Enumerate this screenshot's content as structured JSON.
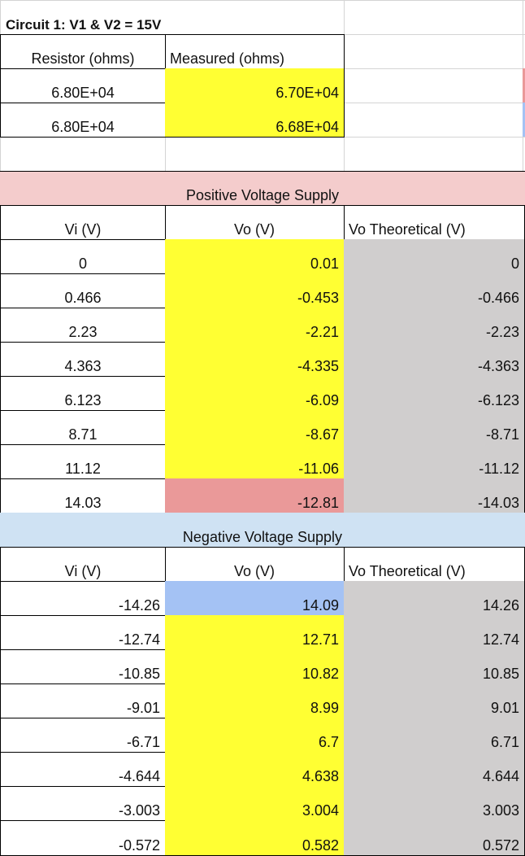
{
  "title": "Circuit 1: V1 & V2 = 15V",
  "colors": {
    "measured": "#ffff33",
    "theoretical": "#d0cece",
    "positive_band": "#f4cccc",
    "negative_band": "#cfe2f3",
    "flag_red": "#ea9999",
    "flag_blue": "#a4c2f4"
  },
  "resistors": {
    "headers": [
      "Resistor (ohms)",
      "Measured (ohms)"
    ],
    "rows": [
      {
        "nominal": "6.80E+04",
        "measured": "6.70E+04"
      },
      {
        "nominal": "6.80E+04",
        "measured": "6.68E+04"
      }
    ]
  },
  "positive": {
    "label": "Positive Voltage Supply",
    "headers": [
      "Vi (V)",
      "Vo (V)",
      "Vo Theoretical (V)"
    ],
    "rows": [
      {
        "vi": "0",
        "vo": "0.01",
        "vt": "0"
      },
      {
        "vi": "0.466",
        "vo": "-0.453",
        "vt": "-0.466"
      },
      {
        "vi": "2.23",
        "vo": "-2.21",
        "vt": "-2.23"
      },
      {
        "vi": "4.363",
        "vo": "-4.335",
        "vt": "-4.363"
      },
      {
        "vi": "6.123",
        "vo": "-6.09",
        "vt": "-6.123"
      },
      {
        "vi": "8.71",
        "vo": "-8.67",
        "vt": "-8.71"
      },
      {
        "vi": "11.12",
        "vo": "-11.06",
        "vt": "-11.12"
      },
      {
        "vi": "14.03",
        "vo": "-12.81",
        "vt": "-14.03"
      }
    ]
  },
  "negative": {
    "label": "Negative Voltage Supply",
    "headers": [
      "Vi (V)",
      "Vo (V)",
      "Vo Theoretical (V)"
    ],
    "rows": [
      {
        "vi": "-14.26",
        "vo": "14.09",
        "vt": "14.26"
      },
      {
        "vi": "-12.74",
        "vo": "12.71",
        "vt": "12.74"
      },
      {
        "vi": "-10.85",
        "vo": "10.82",
        "vt": "10.85"
      },
      {
        "vi": "-9.01",
        "vo": "8.99",
        "vt": "9.01"
      },
      {
        "vi": "-6.71",
        "vo": "6.7",
        "vt": "6.71"
      },
      {
        "vi": "-4.644",
        "vo": "4.638",
        "vt": "4.644"
      },
      {
        "vi": "-3.003",
        "vo": "3.004",
        "vt": "3.003"
      },
      {
        "vi": "-0.572",
        "vo": "0.582",
        "vt": "0.572"
      }
    ]
  }
}
